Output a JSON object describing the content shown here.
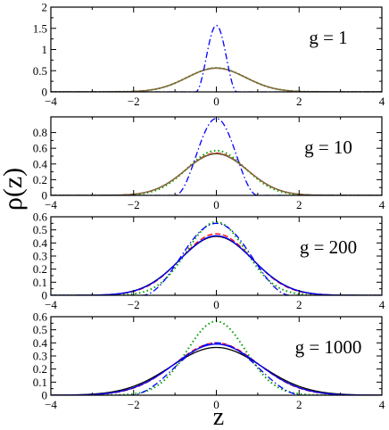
{
  "figure": {
    "ylabel": "ρ(z)",
    "xlabel": "z"
  },
  "colors": {
    "black": "#000000",
    "red": "#ff0000",
    "blue": "#0000ff",
    "green": "#00a000",
    "brown": "#8b6a3a"
  },
  "chart_data": [
    {
      "type": "line",
      "panel_label": "g = 1",
      "xlim": [
        -4,
        4
      ],
      "ylim": [
        0,
        2
      ],
      "xticks": [
        -4,
        -2,
        0,
        2,
        4
      ],
      "yticks": [
        0,
        0.5,
        1,
        1.5,
        2
      ],
      "ytick_labels": [
        "0",
        "0.5",
        "1",
        "1.5",
        "2"
      ],
      "series": [
        {
          "kind": "gaussian",
          "color": "black",
          "dash": "solid",
          "peak": 0.56,
          "sigma": 0.71
        },
        {
          "kind": "gaussian",
          "color": "red",
          "dash": "dashed",
          "peak": 0.56,
          "sigma": 0.71
        },
        {
          "kind": "gaussian",
          "color": "green",
          "dash": "dotted",
          "peak": 0.565,
          "sigma": 0.705
        },
        {
          "kind": "gaussian",
          "color": "brown",
          "dash": "solid",
          "peak": 0.56,
          "sigma": 0.71
        },
        {
          "kind": "cosine_sq",
          "color": "blue",
          "dash": "dashdot",
          "peak": 1.57,
          "half_width": 0.5
        }
      ]
    },
    {
      "type": "line",
      "panel_label": "g = 10",
      "xlim": [
        -4,
        4
      ],
      "ylim": [
        0,
        1
      ],
      "xticks": [
        -4,
        -2,
        0,
        2,
        4
      ],
      "yticks": [
        0,
        0.2,
        0.4,
        0.6,
        0.8
      ],
      "ytick_labels": [
        "0",
        "0.2",
        "0.4",
        "0.6",
        "0.8"
      ],
      "series": [
        {
          "kind": "gaussian",
          "color": "black",
          "dash": "solid",
          "peak": 0.53,
          "sigma": 0.75
        },
        {
          "kind": "gaussian",
          "color": "red",
          "dash": "dashed",
          "peak": 0.54,
          "sigma": 0.74
        },
        {
          "kind": "gaussian",
          "color": "green",
          "dash": "dotted",
          "peak": 0.57,
          "sigma": 0.7
        },
        {
          "kind": "gaussian",
          "color": "brown",
          "dash": "solid",
          "peak": 0.535,
          "sigma": 0.745
        },
        {
          "kind": "cosine_sq",
          "color": "blue",
          "dash": "dashdot",
          "peak": 0.98,
          "half_width": 1.0
        }
      ]
    },
    {
      "type": "line",
      "panel_label": "g = 200",
      "xlim": [
        -4,
        4
      ],
      "ylim": [
        0,
        0.6
      ],
      "xticks": [
        -4,
        -2,
        0,
        2,
        4
      ],
      "yticks": [
        0,
        0.1,
        0.2,
        0.3,
        0.4,
        0.5,
        0.6
      ],
      "ytick_labels": [
        "0",
        "0.1",
        "0.2",
        "0.3",
        "0.4",
        "0.5",
        "0.6"
      ],
      "series": [
        {
          "kind": "gaussian",
          "color": "black",
          "dash": "solid",
          "peak": 0.45,
          "sigma": 0.88
        },
        {
          "kind": "gaussian",
          "color": "red",
          "dash": "dashed",
          "peak": 0.47,
          "sigma": 0.85
        },
        {
          "kind": "gaussian",
          "color": "green",
          "dash": "dotted",
          "peak": 0.56,
          "sigma": 0.71
        },
        {
          "kind": "gaussian",
          "color": "blue",
          "dash": "solid",
          "peak": 0.455,
          "sigma": 0.87
        },
        {
          "kind": "cosine_sq",
          "color": "blue",
          "dash": "dashdot",
          "peak": 0.55,
          "half_width": 1.8
        }
      ]
    },
    {
      "type": "line",
      "panel_label": "g = 1000",
      "xlim": [
        -4,
        4
      ],
      "ylim": [
        0,
        0.6
      ],
      "xticks": [
        -4,
        -2,
        0,
        2,
        4
      ],
      "yticks": [
        0,
        0.1,
        0.2,
        0.3,
        0.4,
        0.5,
        0.6
      ],
      "ytick_labels": [
        "0",
        "0.1",
        "0.2",
        "0.3",
        "0.4",
        "0.5",
        "0.6"
      ],
      "series": [
        {
          "kind": "gaussian",
          "color": "black",
          "dash": "solid",
          "peak": 0.365,
          "sigma": 1.09
        },
        {
          "kind": "gaussian",
          "color": "red",
          "dash": "dashed",
          "peak": 0.4,
          "sigma": 1.0
        },
        {
          "kind": "gaussian",
          "color": "green",
          "dash": "dotted",
          "peak": 0.565,
          "sigma": 0.705
        },
        {
          "kind": "gaussian",
          "color": "blue",
          "dash": "solid",
          "peak": 0.39,
          "sigma": 1.02
        },
        {
          "kind": "cosine_sq",
          "color": "blue",
          "dash": "dashdot",
          "peak": 0.4,
          "half_width": 2.1
        }
      ]
    }
  ]
}
